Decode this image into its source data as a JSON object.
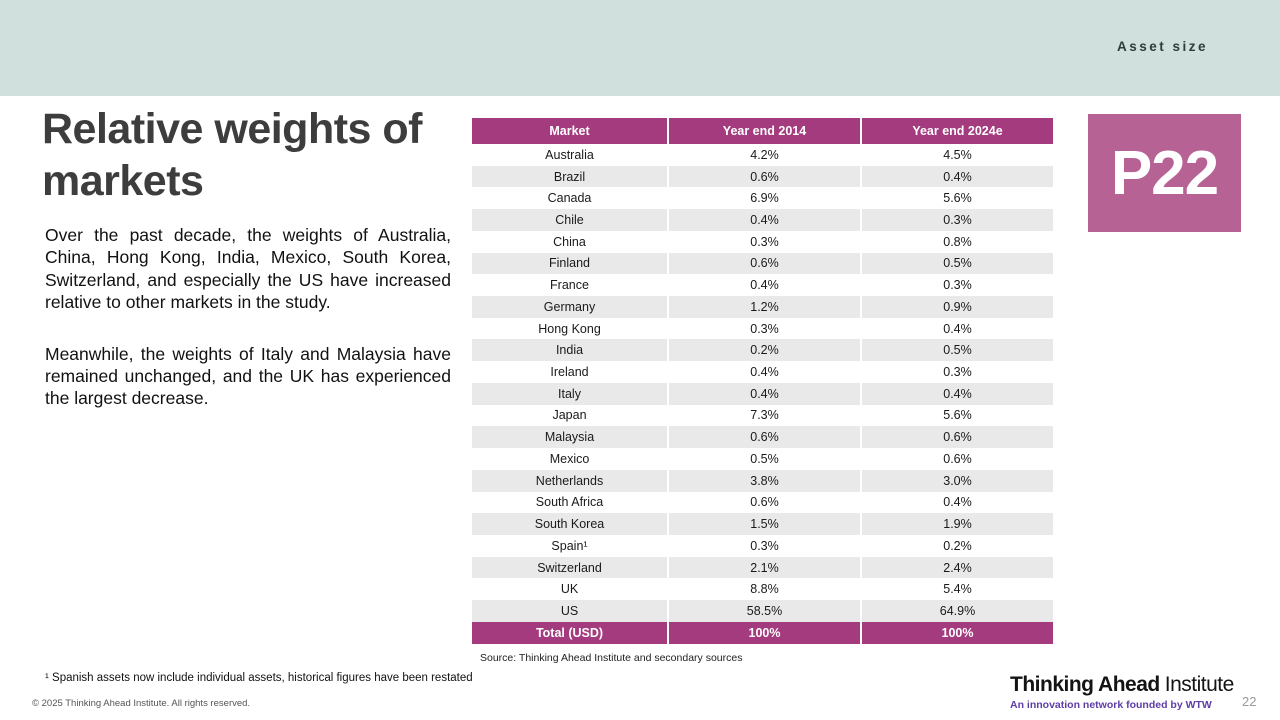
{
  "banner": {
    "section_label": "Asset size"
  },
  "page": {
    "title": "Relative weights of markets",
    "paragraphs": [
      "Over the past decade, the weights of Australia, China, Hong Kong, India, Mexico, South Korea, Switzerland, and especially the US have increased relative to other markets in the study.",
      "Meanwhile, the weights of Italy and Malaysia have remained unchanged, and the UK has experienced the largest decrease."
    ],
    "footnote": "¹ Spanish assets now include individual assets, historical figures have been restated",
    "copyright": "© 2025 Thinking Ahead Institute. All rights reserved.",
    "page_number": "22"
  },
  "badge": {
    "label": "P22"
  },
  "table": {
    "headers": [
      "Market",
      "Year end 2014",
      "Year end 2024e"
    ],
    "rows": [
      {
        "market": "Australia",
        "y2014": "4.2%",
        "y2024": "4.5%"
      },
      {
        "market": "Brazil",
        "y2014": "0.6%",
        "y2024": "0.4%"
      },
      {
        "market": "Canada",
        "y2014": "6.9%",
        "y2024": "5.6%"
      },
      {
        "market": "Chile",
        "y2014": "0.4%",
        "y2024": "0.3%"
      },
      {
        "market": "China",
        "y2014": "0.3%",
        "y2024": "0.8%"
      },
      {
        "market": "Finland",
        "y2014": "0.6%",
        "y2024": "0.5%"
      },
      {
        "market": "France",
        "y2014": "0.4%",
        "y2024": "0.3%"
      },
      {
        "market": "Germany",
        "y2014": "1.2%",
        "y2024": "0.9%"
      },
      {
        "market": "Hong Kong",
        "y2014": "0.3%",
        "y2024": "0.4%"
      },
      {
        "market": "India",
        "y2014": "0.2%",
        "y2024": "0.5%"
      },
      {
        "market": "Ireland",
        "y2014": "0.4%",
        "y2024": "0.3%"
      },
      {
        "market": "Italy",
        "y2014": "0.4%",
        "y2024": "0.4%"
      },
      {
        "market": "Japan",
        "y2014": "7.3%",
        "y2024": "5.6%"
      },
      {
        "market": "Malaysia",
        "y2014": "0.6%",
        "y2024": "0.6%"
      },
      {
        "market": "Mexico",
        "y2014": "0.5%",
        "y2024": "0.6%"
      },
      {
        "market": "Netherlands",
        "y2014": "3.8%",
        "y2024": "3.0%"
      },
      {
        "market": "South Africa",
        "y2014": "0.6%",
        "y2024": "0.4%"
      },
      {
        "market": "South Korea",
        "y2014": "1.5%",
        "y2024": "1.9%"
      },
      {
        "market": "Spain¹",
        "y2014": "0.3%",
        "y2024": "0.2%"
      },
      {
        "market": "Switzerland",
        "y2014": "2.1%",
        "y2024": "2.4%"
      },
      {
        "market": "UK",
        "y2014": "8.8%",
        "y2024": "5.4%"
      },
      {
        "market": "US",
        "y2014": "58.5%",
        "y2024": "64.9%"
      }
    ],
    "total": {
      "market": "Total (USD)",
      "y2014": "100%",
      "y2024": "100%"
    },
    "source": "Source: Thinking Ahead Institute and secondary sources"
  },
  "logo": {
    "brand_bold": "Thinking Ahead",
    "brand_regular": "Institute",
    "tagline": "An innovation network founded by WTW"
  },
  "colors": {
    "banner": "#d0e1dd",
    "table_header": "#a33b7e",
    "badge": "#b76295",
    "row_alt": "#e9e9e9",
    "tagline": "#5e3da6"
  }
}
